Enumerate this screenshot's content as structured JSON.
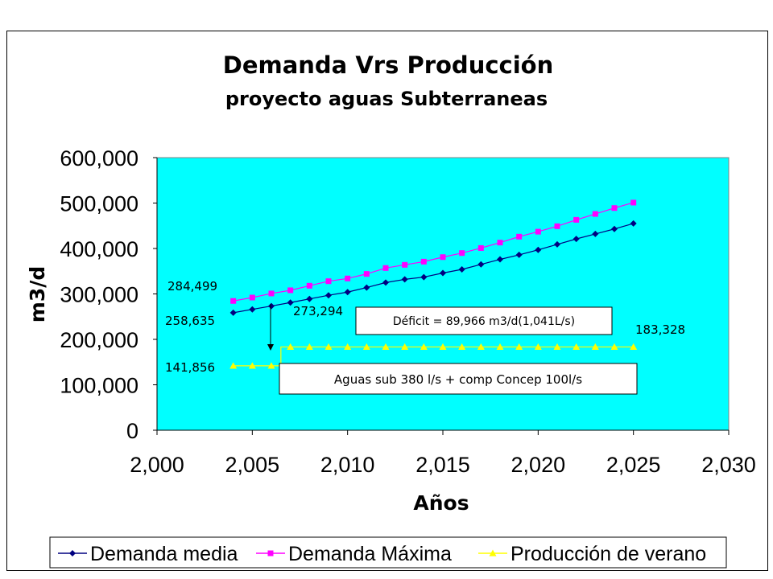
{
  "chart_data": {
    "type": "line",
    "title": "Demanda Vrs Producción",
    "subtitle": "proyecto aguas Subterraneas",
    "xlabel": "Años",
    "ylabel": "m3/d",
    "xlim": [
      2000,
      2030
    ],
    "ylim": [
      0,
      600000
    ],
    "x_ticks": [
      "2,000",
      "2,005",
      "2,010",
      "2,015",
      "2,020",
      "2,025",
      "2,030"
    ],
    "y_ticks": [
      "0",
      "100,000",
      "200,000",
      "300,000",
      "400,000",
      "500,000",
      "600,000"
    ],
    "grid": false,
    "plot_background": "#00FFFF",
    "legend_position": "bottom",
    "x": [
      2004,
      2005,
      2006,
      2007,
      2008,
      2009,
      2010,
      2011,
      2012,
      2013,
      2014,
      2015,
      2016,
      2017,
      2018,
      2019,
      2020,
      2021,
      2022,
      2023,
      2024,
      2025
    ],
    "series": [
      {
        "name": "Demanda media",
        "color": "#000080",
        "marker": "diamond",
        "values": [
          258635,
          266000,
          273294,
          281000,
          289000,
          297000,
          304000,
          314000,
          325000,
          332000,
          337000,
          346000,
          354000,
          365000,
          376000,
          386000,
          397000,
          409000,
          421000,
          432000,
          443000,
          455000
        ]
      },
      {
        "name": "Demanda Máxima",
        "color": "#FF00FF",
        "marker": "square",
        "values": [
          284499,
          292000,
          301000,
          308000,
          318000,
          328000,
          334000,
          344000,
          357000,
          364000,
          371000,
          381000,
          390000,
          401000,
          413000,
          426000,
          437000,
          449000,
          463000,
          476000,
          489000,
          501000
        ]
      },
      {
        "name": "Producción de verano",
        "color": "#FFFF00",
        "marker": "triangle",
        "values": [
          141856,
          141856,
          141856,
          183328,
          183328,
          183328,
          183328,
          183328,
          183328,
          183328,
          183328,
          183328,
          183328,
          183328,
          183328,
          183328,
          183328,
          183328,
          183328,
          183328,
          183328,
          183328
        ]
      }
    ],
    "data_labels": [
      {
        "text": "284,499"
      },
      {
        "text": "258,635"
      },
      {
        "text": "273,294"
      },
      {
        "text": "141,856"
      },
      {
        "text": "183,328"
      }
    ],
    "annotations": [
      {
        "text": "Déficit = 89,966 m3/d(1,041L/s)"
      },
      {
        "text": "Aguas sub 380 l/s + comp Concep 100l/s"
      }
    ]
  }
}
